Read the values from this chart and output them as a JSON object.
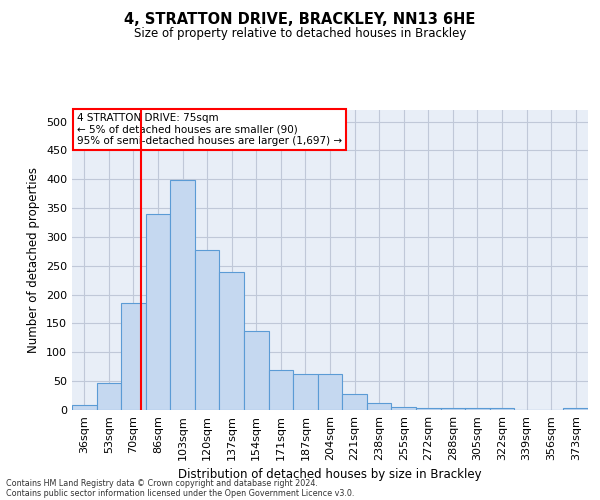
{
  "title1": "4, STRATTON DRIVE, BRACKLEY, NN13 6HE",
  "title2": "Size of property relative to detached houses in Brackley",
  "xlabel": "Distribution of detached houses by size in Brackley",
  "ylabel": "Number of detached properties",
  "categories": [
    "36sqm",
    "53sqm",
    "70sqm",
    "86sqm",
    "103sqm",
    "120sqm",
    "137sqm",
    "154sqm",
    "171sqm",
    "187sqm",
    "204sqm",
    "221sqm",
    "238sqm",
    "255sqm",
    "272sqm",
    "288sqm",
    "305sqm",
    "322sqm",
    "339sqm",
    "356sqm",
    "373sqm"
  ],
  "values": [
    8,
    46,
    185,
    340,
    398,
    278,
    240,
    137,
    70,
    62,
    62,
    27,
    12,
    6,
    4,
    3,
    3,
    3,
    0,
    0,
    3
  ],
  "bar_color": "#c5d8f0",
  "bar_edge_color": "#5b9bd5",
  "grid_color": "#c0c8d8",
  "background_color": "#e8eef7",
  "annotation_title": "4 STRATTON DRIVE: 75sqm",
  "annotation_line2": "← 5% of detached houses are smaller (90)",
  "annotation_line3": "95% of semi-detached houses are larger (1,697) →",
  "footer1": "Contains HM Land Registry data © Crown copyright and database right 2024.",
  "footer2": "Contains public sector information licensed under the Open Government Licence v3.0.",
  "ylim": [
    0,
    520
  ],
  "yticks": [
    0,
    50,
    100,
    150,
    200,
    250,
    300,
    350,
    400,
    450,
    500
  ]
}
